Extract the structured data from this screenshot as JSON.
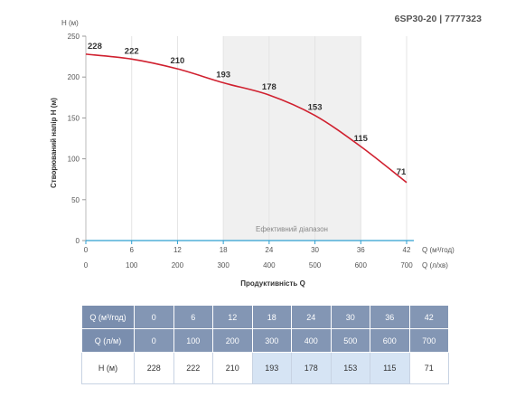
{
  "model": "6SP30-20 | 7777323",
  "y_unit_label": "H (м)",
  "y_axis_title": "Створюваний напір H (м)",
  "x_axis_title": "Продуктивність Q",
  "x_unit_1": "Q (м³/год)",
  "x_unit_2": "Q (л/хв)",
  "efficiency_label": "Ефективний діапазон",
  "chart_data": {
    "type": "line",
    "x_m3h": [
      0,
      6,
      12,
      18,
      24,
      30,
      36,
      42
    ],
    "x_lmin": [
      0,
      100,
      200,
      300,
      400,
      500,
      600,
      700
    ],
    "series": [
      {
        "values": [
          228,
          222,
          210,
          193,
          178,
          153,
          115,
          71
        ],
        "color": "#d0202f"
      }
    ],
    "point_labels": [
      "228",
      "222",
      "210",
      "193",
      "178",
      "153",
      "115",
      "71"
    ],
    "y_ticks": [
      "0",
      "50",
      "100",
      "150",
      "200",
      "250"
    ],
    "ylim": [
      0,
      250
    ],
    "xlim_m3h": [
      0,
      42
    ],
    "efficiency_range_m3h": [
      18,
      36
    ],
    "grid": "vertical"
  },
  "table": {
    "rows": [
      {
        "label": "Q (м³/год)",
        "cells": [
          "0",
          "6",
          "12",
          "18",
          "24",
          "30",
          "36",
          "42"
        ]
      },
      {
        "label": "Q (л/м)",
        "cells": [
          "0",
          "100",
          "200",
          "300",
          "400",
          "500",
          "600",
          "700"
        ]
      },
      {
        "label": "H (м)",
        "cells": [
          "228",
          "222",
          "210",
          "193",
          "178",
          "153",
          "115",
          "71"
        ]
      }
    ],
    "efficient_columns": [
      3,
      4,
      5,
      6
    ]
  }
}
